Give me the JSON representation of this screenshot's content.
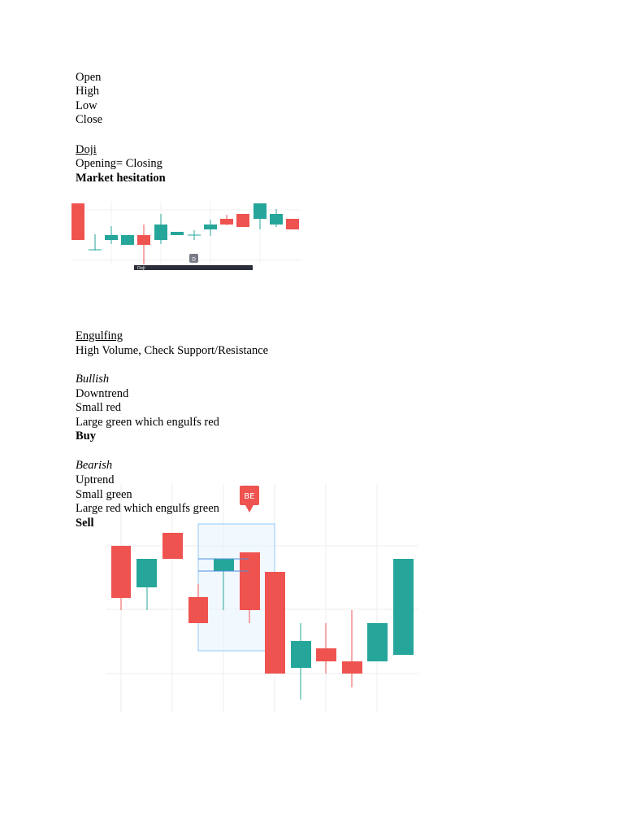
{
  "ohlc": {
    "lines": [
      "Open",
      "High",
      "Low",
      "Close"
    ]
  },
  "doji": {
    "heading": "Doji",
    "definition": "Opening= Closing",
    "meaning": "Market hesitation",
    "marker": "D",
    "caption": "Doji"
  },
  "engulfing": {
    "heading": "Engulfing",
    "note": "High Volume, Check Support/Resistance",
    "bullish": {
      "heading": "Bullish",
      "lines": [
        "Downtrend",
        "Small red",
        "Large green which engulfs red"
      ],
      "action": "Buy"
    },
    "bearish": {
      "heading": "Bearish",
      "lines": [
        "Uptrend",
        "Small green",
        "Large red which engulfs green"
      ],
      "action": "Sell"
    },
    "marker": "BE"
  }
}
